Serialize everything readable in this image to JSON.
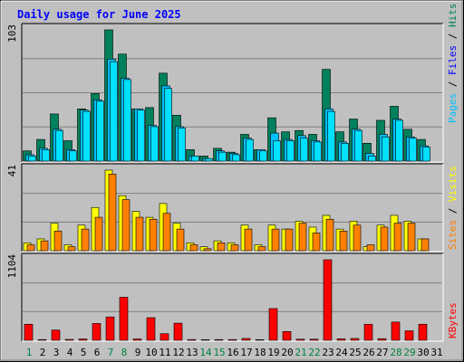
{
  "title": "Daily usage for June 2025",
  "colors": {
    "background": "#c0c0c0",
    "title": "#0000ff",
    "hits": "#00805c",
    "files": "#00c0ff",
    "pages": "#00e0ff",
    "visits": "#ffff00",
    "sites": "#ff8000",
    "kbytes": "#ff0000",
    "weekend": "#008040",
    "weekday": "#000000",
    "highlight": "#0040ff"
  },
  "side_labels": {
    "top": [
      {
        "text": "Pages",
        "color": "#00c0ff"
      },
      {
        "text": " / ",
        "color": "#000000"
      },
      {
        "text": "Files",
        "color": "#0000ff"
      },
      {
        "text": " / ",
        "color": "#000000"
      },
      {
        "text": "Hits",
        "color": "#00805c"
      }
    ],
    "middle": [
      {
        "text": "Sites",
        "color": "#ff8000"
      },
      {
        "text": " / ",
        "color": "#000000"
      },
      {
        "text": "Visits",
        "color": "#ffff00"
      }
    ],
    "bottom": [
      {
        "text": "KBytes",
        "color": "#ff0000"
      }
    ]
  },
  "chart_data": [
    {
      "type": "bar",
      "panel": "top",
      "ymax_label": "103",
      "ylim": [
        0,
        103
      ],
      "categories": [
        "1",
        "2",
        "3",
        "4",
        "5",
        "6",
        "7",
        "8",
        "9",
        "10",
        "11",
        "12",
        "13",
        "14",
        "15",
        "16",
        "17",
        "18",
        "19",
        "20",
        "21",
        "22",
        "23",
        "24",
        "25",
        "26",
        "27",
        "28",
        "29",
        "30",
        "31"
      ],
      "weekend_days": [
        "1",
        "7",
        "8",
        "14",
        "15",
        "21",
        "22",
        "28",
        "29"
      ],
      "series": [
        {
          "name": "Hits",
          "values": [
            8,
            17,
            37,
            16,
            41,
            53,
            103,
            84,
            41,
            42,
            69,
            36,
            9,
            4,
            10,
            7,
            21,
            9,
            34,
            23,
            24,
            21,
            72,
            23,
            33,
            14,
            32,
            43,
            25,
            17,
            0
          ]
        },
        {
          "name": "Files",
          "values": [
            5,
            10,
            25,
            9,
            40,
            48,
            80,
            65,
            41,
            28,
            59,
            27,
            4,
            2,
            8,
            6,
            18,
            9,
            22,
            17,
            20,
            16,
            41,
            15,
            25,
            6,
            21,
            33,
            19,
            12,
            0
          ]
        },
        {
          "name": "Pages",
          "values": [
            4,
            9,
            24,
            8,
            39,
            47,
            78,
            64,
            40,
            27,
            57,
            26,
            4,
            2,
            7,
            5,
            17,
            8,
            16,
            16,
            18,
            15,
            39,
            14,
            24,
            4,
            19,
            32,
            18,
            11,
            0
          ]
        }
      ]
    },
    {
      "type": "bar",
      "panel": "middle",
      "ymax_label": "41",
      "ylim": [
        0,
        41
      ],
      "categories": [
        "1",
        "2",
        "3",
        "4",
        "5",
        "6",
        "7",
        "8",
        "9",
        "10",
        "11",
        "12",
        "13",
        "14",
        "15",
        "16",
        "17",
        "18",
        "19",
        "20",
        "21",
        "22",
        "23",
        "24",
        "25",
        "26",
        "27",
        "28",
        "29",
        "30",
        "31"
      ],
      "series": [
        {
          "name": "Visits",
          "values": [
            4,
            6,
            14,
            3,
            13,
            22,
            41,
            28,
            20,
            17,
            24,
            14,
            4,
            2,
            5,
            4,
            13,
            3,
            13,
            11,
            15,
            12,
            18,
            11,
            15,
            2,
            13,
            18,
            15,
            6,
            0
          ]
        },
        {
          "name": "Sites",
          "values": [
            3,
            5,
            10,
            2,
            11,
            17,
            39,
            26,
            17,
            16,
            19,
            11,
            3,
            1,
            4,
            3,
            11,
            2,
            11,
            11,
            14,
            9,
            16,
            10,
            13,
            3,
            12,
            14,
            14,
            6,
            0
          ]
        }
      ]
    },
    {
      "type": "bar",
      "panel": "bottom",
      "ymax_label": "1104",
      "ylim": [
        0,
        1104
      ],
      "categories": [
        "1",
        "2",
        "3",
        "4",
        "5",
        "6",
        "7",
        "8",
        "9",
        "10",
        "11",
        "12",
        "13",
        "14",
        "15",
        "16",
        "17",
        "18",
        "19",
        "20",
        "21",
        "22",
        "23",
        "24",
        "25",
        "26",
        "27",
        "28",
        "29",
        "30",
        "31"
      ],
      "series": [
        {
          "name": "KBytes",
          "values": [
            220,
            10,
            140,
            12,
            18,
            230,
            320,
            590,
            18,
            310,
            90,
            235,
            10,
            8,
            10,
            10,
            25,
            8,
            435,
            120,
            15,
            15,
            1104,
            20,
            25,
            220,
            22,
            250,
            130,
            220,
            0
          ]
        }
      ]
    }
  ]
}
